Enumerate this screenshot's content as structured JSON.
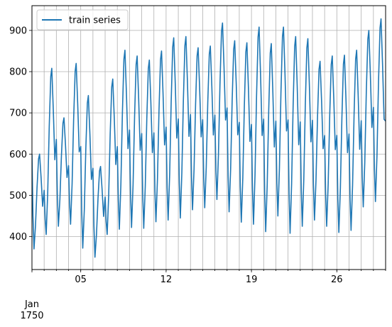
{
  "chart_data": {
    "type": "line",
    "title": "",
    "xlabel": "",
    "ylabel": "",
    "x_range": [
      "1750-01-01 00:00",
      "1750-01-30 00:00"
    ],
    "ylim": [
      320,
      960
    ],
    "y_ticks": [
      400,
      500,
      600,
      700,
      800,
      900
    ],
    "x_major_ticks": [
      {
        "date": "1750-01-05",
        "label": "05"
      },
      {
        "date": "1750-01-12",
        "label": "12"
      },
      {
        "date": "1750-01-19",
        "label": "19"
      },
      {
        "date": "1750-01-26",
        "label": "26"
      }
    ],
    "x_secondary_label": {
      "month": "Jan",
      "year": "1750"
    },
    "grid": true,
    "legend": {
      "position": "top-left",
      "entries": [
        "train series"
      ]
    },
    "colors": {
      "series": "#1f77b4",
      "grid": "#b0b0b0"
    },
    "series": [
      {
        "name": "train series",
        "daily_cycle": [
          {
            "day": "1750-01-01",
            "max": 600,
            "min": 370
          },
          {
            "day": "1750-01-02",
            "max": 808,
            "min": 405
          },
          {
            "day": "1750-01-03",
            "max": 688,
            "min": 425
          },
          {
            "day": "1750-01-04",
            "max": 820,
            "min": 430
          },
          {
            "day": "1750-01-05",
            "max": 742,
            "min": 372
          },
          {
            "day": "1750-01-06",
            "max": 570,
            "min": 350
          },
          {
            "day": "1750-01-07",
            "max": 782,
            "min": 405
          },
          {
            "day": "1750-01-08",
            "max": 852,
            "min": 418
          },
          {
            "day": "1750-01-09",
            "max": 838,
            "min": 422
          },
          {
            "day": "1750-01-10",
            "max": 828,
            "min": 420
          },
          {
            "day": "1750-01-11",
            "max": 850,
            "min": 436
          },
          {
            "day": "1750-01-12",
            "max": 882,
            "min": 440
          },
          {
            "day": "1750-01-13",
            "max": 885,
            "min": 445
          },
          {
            "day": "1750-01-14",
            "max": 858,
            "min": 465
          },
          {
            "day": "1750-01-15",
            "max": 862,
            "min": 470
          },
          {
            "day": "1750-01-16",
            "max": 918,
            "min": 490
          },
          {
            "day": "1750-01-17",
            "max": 875,
            "min": 460
          },
          {
            "day": "1750-01-18",
            "max": 870,
            "min": 435
          },
          {
            "day": "1750-01-19",
            "max": 908,
            "min": 430
          },
          {
            "day": "1750-01-20",
            "max": 868,
            "min": 412
          },
          {
            "day": "1750-01-21",
            "max": 908,
            "min": 450
          },
          {
            "day": "1750-01-22",
            "max": 885,
            "min": 408
          },
          {
            "day": "1750-01-23",
            "max": 880,
            "min": 425
          },
          {
            "day": "1750-01-24",
            "max": 825,
            "min": 440
          },
          {
            "day": "1750-01-25",
            "max": 838,
            "min": 425
          },
          {
            "day": "1750-01-26",
            "max": 840,
            "min": 410
          },
          {
            "day": "1750-01-27",
            "max": 852,
            "min": 415
          },
          {
            "day": "1750-01-28",
            "max": 900,
            "min": 472
          },
          {
            "day": "1750-01-29",
            "max": 928,
            "min": 485
          }
        ],
        "end_value": 680
      }
    ]
  }
}
